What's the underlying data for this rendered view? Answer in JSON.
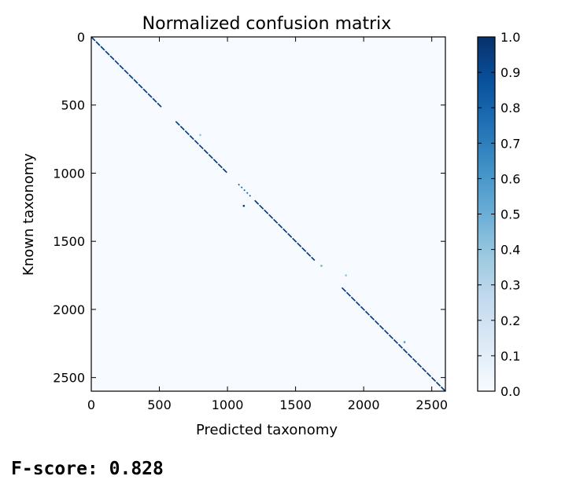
{
  "chart_data": {
    "type": "heatmap",
    "title": "Normalized confusion matrix",
    "xlabel": "Predicted taxonomy",
    "ylabel": "Known taxonomy",
    "n_classes": 2600,
    "xlim": [
      0,
      2600
    ],
    "ylim": [
      2600,
      0
    ],
    "x_ticks": [
      0,
      500,
      1000,
      1500,
      2000,
      2500
    ],
    "y_ticks": [
      0,
      500,
      1000,
      1500,
      2000,
      2500
    ],
    "colormap": "Blues",
    "colorbar_range": [
      0.0,
      1.0
    ],
    "colorbar_ticks": [
      "0.0",
      "0.1",
      "0.2",
      "0.3",
      "0.4",
      "0.5",
      "0.6",
      "0.7",
      "0.8",
      "0.9",
      "1.0"
    ],
    "background_value": 0.0,
    "colors": {
      "low": "#f7fbff",
      "mid": "#6baed6",
      "high": "#08306b"
    },
    "diagonal_segments": [
      {
        "start": 0,
        "end": 520,
        "value": 0.95
      },
      {
        "start": 620,
        "end": 1000,
        "value": 0.95
      },
      {
        "start": 1080,
        "end": 1180,
        "value": 0.8
      },
      {
        "start": 1200,
        "end": 1640,
        "value": 0.95
      },
      {
        "start": 1840,
        "end": 2600,
        "value": 0.95
      }
    ],
    "off_diagonal_points": [
      {
        "x": 800,
        "y": 720,
        "value": 0.4
      },
      {
        "x": 1120,
        "y": 1240,
        "value": 0.95
      },
      {
        "x": 1690,
        "y": 1680,
        "value": 0.5
      },
      {
        "x": 1870,
        "y": 1750,
        "value": 0.4
      },
      {
        "x": 2300,
        "y": 2240,
        "value": 0.6
      }
    ]
  },
  "footer": {
    "fscore_text": "F-score: 0.828"
  }
}
